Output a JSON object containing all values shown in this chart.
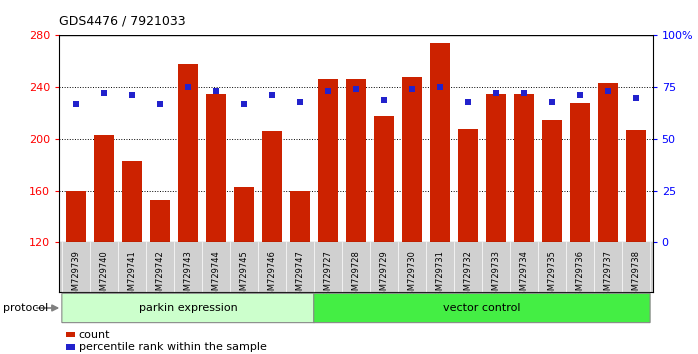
{
  "title": "GDS4476 / 7921033",
  "samples": [
    "GSM729739",
    "GSM729740",
    "GSM729741",
    "GSM729742",
    "GSM729743",
    "GSM729744",
    "GSM729745",
    "GSM729746",
    "GSM729747",
    "GSM729727",
    "GSM729728",
    "GSM729729",
    "GSM729730",
    "GSM729731",
    "GSM729732",
    "GSM729733",
    "GSM729734",
    "GSM729735",
    "GSM729736",
    "GSM729737",
    "GSM729738"
  ],
  "counts": [
    160,
    203,
    183,
    153,
    258,
    235,
    163,
    206,
    160,
    246,
    246,
    218,
    248,
    274,
    208,
    235,
    235,
    215,
    228,
    243,
    207
  ],
  "percentiles": [
    67,
    72,
    71,
    67,
    75,
    73,
    67,
    71,
    68,
    73,
    74,
    69,
    74,
    75,
    68,
    72,
    72,
    68,
    71,
    73,
    70
  ],
  "ylim_left": [
    120,
    280
  ],
  "ylim_right": [
    0,
    100
  ],
  "yticks_left": [
    120,
    160,
    200,
    240,
    280
  ],
  "yticks_right": [
    0,
    25,
    50,
    75,
    100
  ],
  "ytick_labels_right": [
    "0",
    "25",
    "50",
    "75",
    "100%"
  ],
  "bar_color": "#cc2200",
  "dot_color": "#2222cc",
  "parkin_count": 9,
  "vector_count": 12,
  "parkin_color": "#ccffcc",
  "vector_color": "#44ee44",
  "parkin_label": "parkin expression",
  "vector_label": "vector control",
  "legend_count_label": "count",
  "legend_pct_label": "percentile rank within the sample",
  "protocol_label": "protocol",
  "bg_color": "#ffffff",
  "plot_bg_color": "#ffffff",
  "xtick_bg_color": "#d0d0d0",
  "gridline_color": "#000000",
  "gridline_style": "dotted"
}
